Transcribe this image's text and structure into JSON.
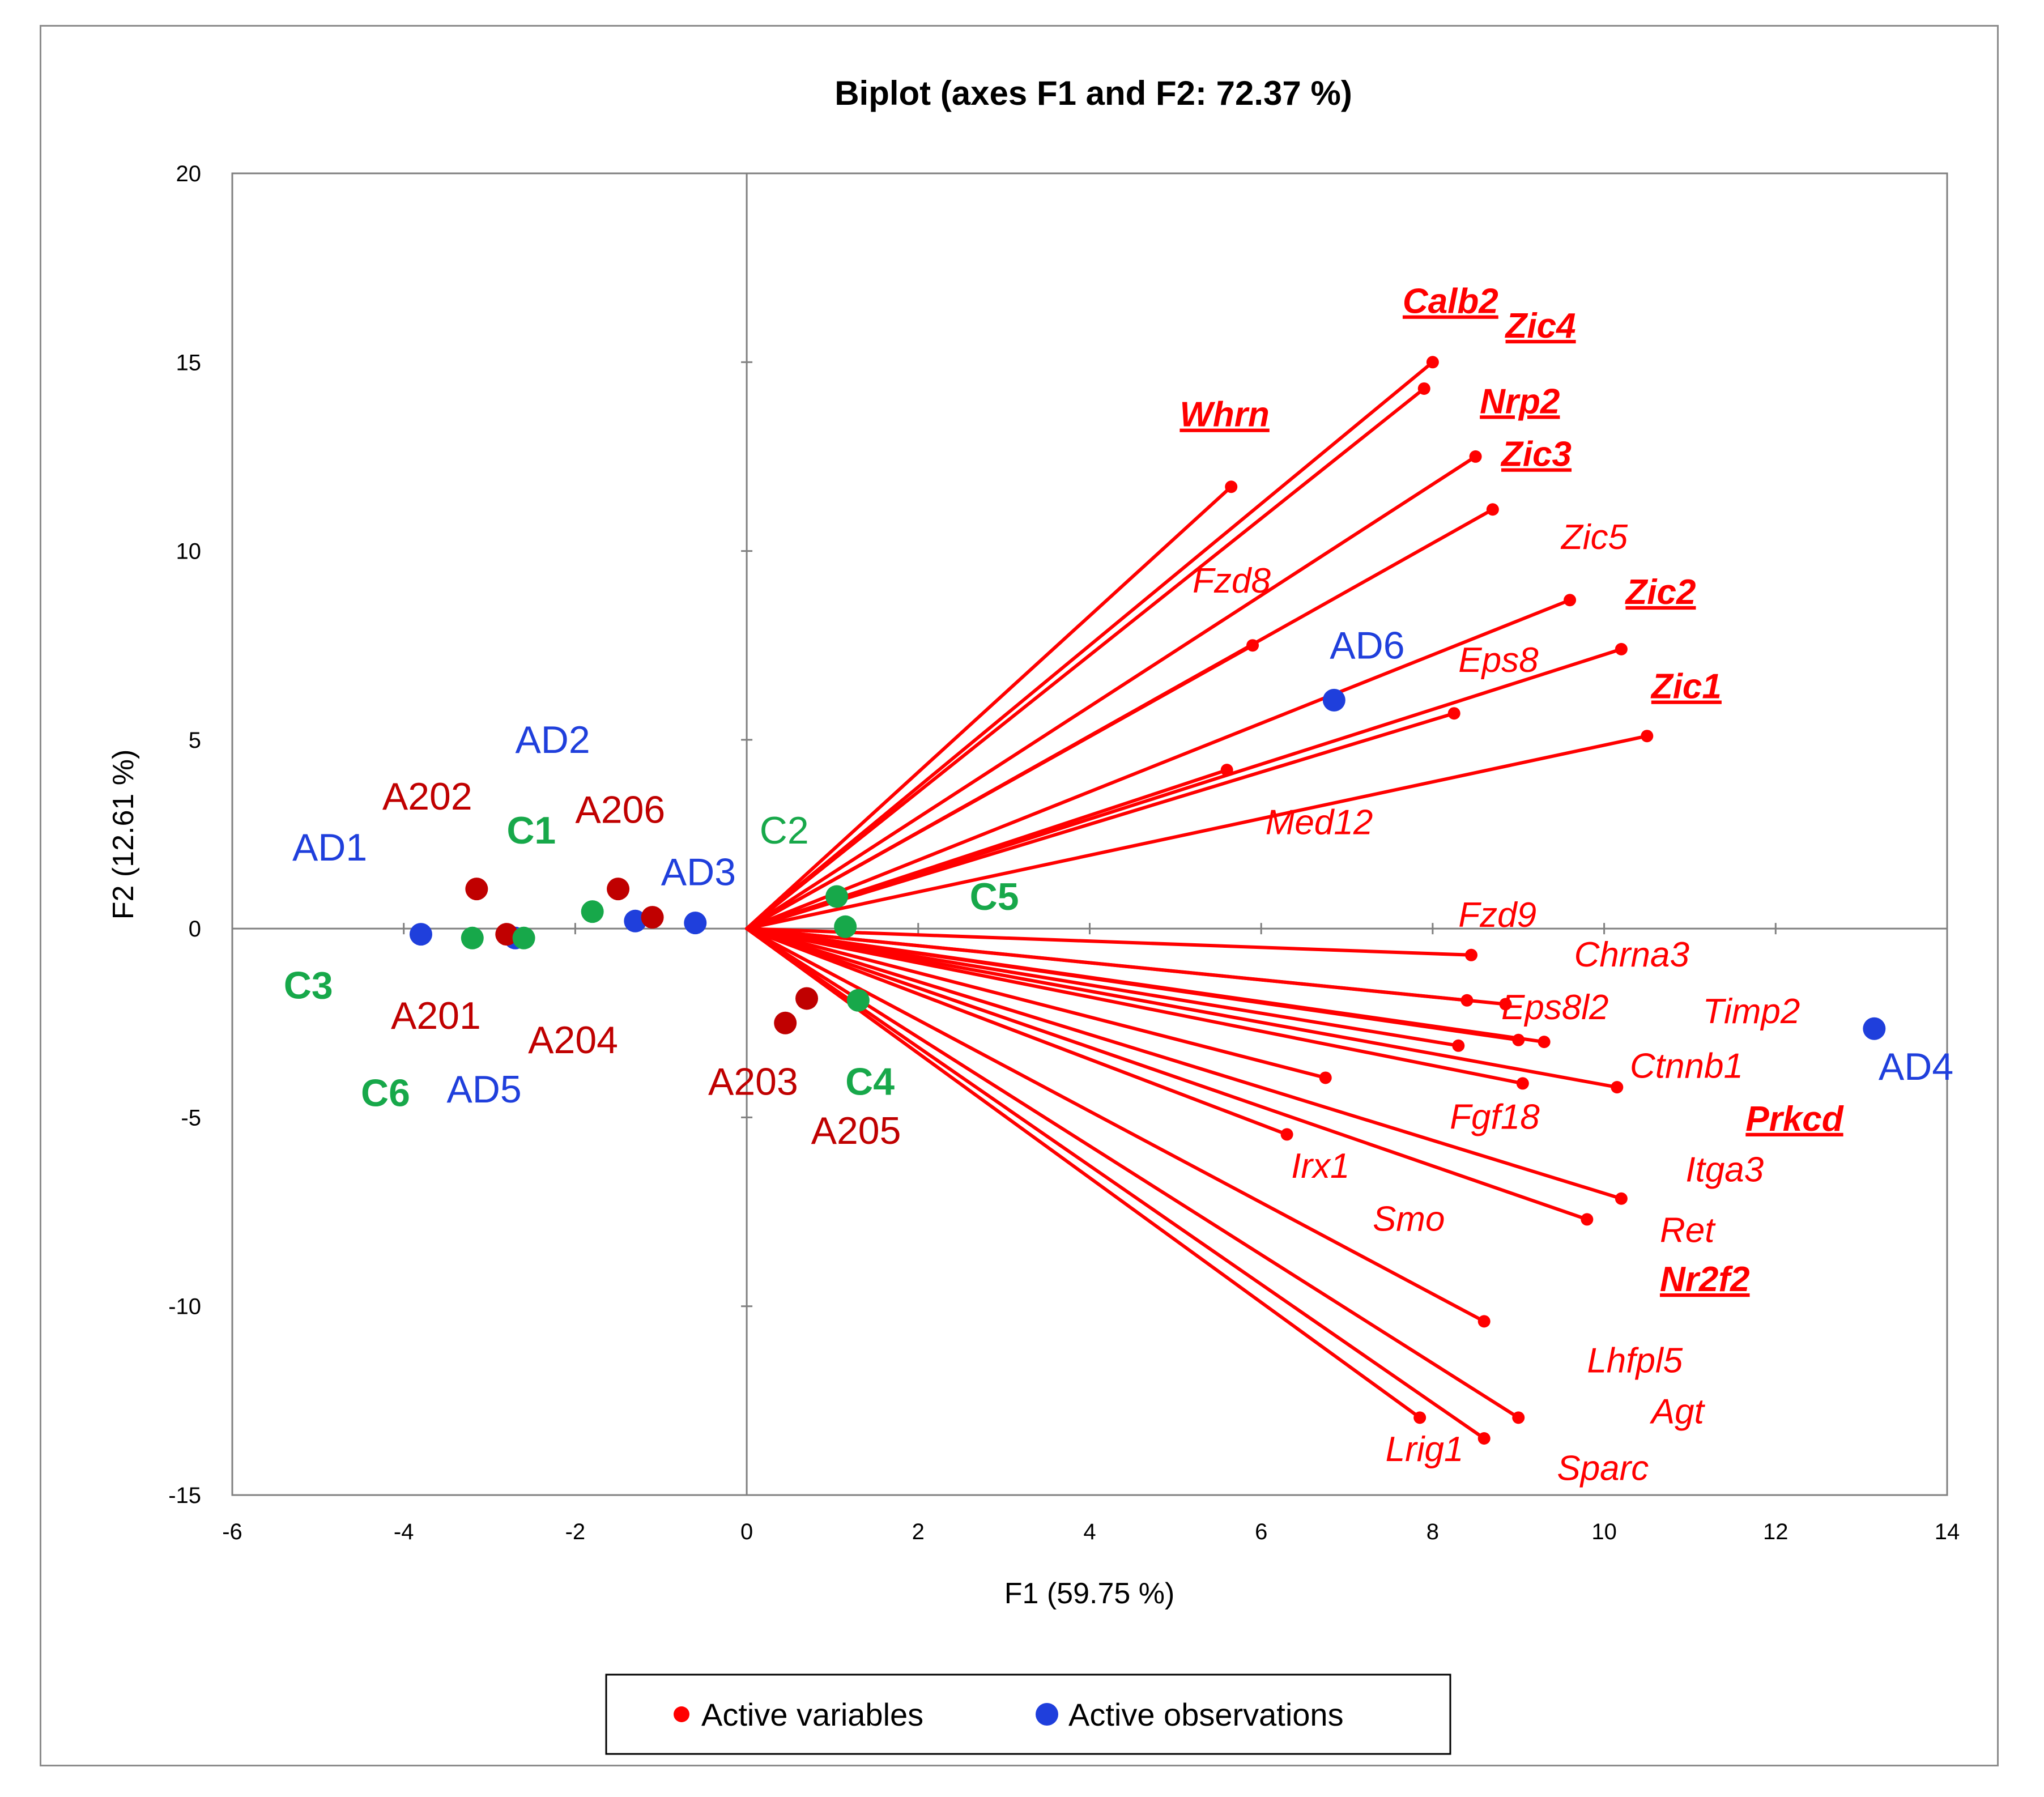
{
  "colors": {
    "variables": "#ff0000",
    "observations": "#1f3fdc",
    "group_A2": "#c00000",
    "group_AD": "#1f3fdc",
    "group_C": "#17a84a",
    "axis": "#808080",
    "text": "#000000"
  },
  "chart_data": {
    "type": "scatter",
    "title": "Biplot (axes F1 and F2: 72.37 %)",
    "xlabel": "F1 (59.75 %)",
    "ylabel": "F2 (12.61 %)",
    "xlim": [
      -6,
      14
    ],
    "ylim": [
      -15,
      20
    ],
    "xticks": [
      "-6",
      "-4",
      "-2",
      "0",
      "2",
      "4",
      "6",
      "8",
      "10",
      "12",
      "14"
    ],
    "yticks": [
      "20",
      "15",
      "10",
      "5",
      "0",
      "-5",
      "-10",
      "-15"
    ],
    "grid": false,
    "legend": {
      "position": "bottom",
      "items": [
        "Active variables",
        "Active observations"
      ]
    },
    "variables": [
      {
        "name": "Calb2",
        "x": 8.0,
        "y": 15.0,
        "style": "bold-underline"
      },
      {
        "name": "Zic4",
        "x": 7.9,
        "y": 14.3,
        "style": "bold-underline"
      },
      {
        "name": "Whrn",
        "x": 5.65,
        "y": 11.7,
        "style": "bold-underline"
      },
      {
        "name": "Nrp2",
        "x": 8.5,
        "y": 12.5,
        "style": "bold-underline"
      },
      {
        "name": "Zic3",
        "x": 8.7,
        "y": 11.1,
        "style": "bold-underline"
      },
      {
        "name": "Zic5",
        "x": 9.6,
        "y": 8.7,
        "style": "italic"
      },
      {
        "name": "Fzd8",
        "x": 5.9,
        "y": 7.5,
        "style": "italic"
      },
      {
        "name": "Zic2",
        "x": 10.2,
        "y": 7.4,
        "style": "bold-underline"
      },
      {
        "name": "Eps8",
        "x": 8.25,
        "y": 5.7,
        "style": "italic"
      },
      {
        "name": "Zic1",
        "x": 10.5,
        "y": 5.1,
        "style": "bold-underline"
      },
      {
        "name": "Med12",
        "x": 5.6,
        "y": 4.2,
        "style": "italic"
      },
      {
        "name": "Fzd9",
        "x": 8.45,
        "y": -0.7,
        "style": "italic"
      },
      {
        "name": "Chrna3",
        "x": 8.85,
        "y": -2.0,
        "style": "italic"
      },
      {
        "name": "Eps8l2",
        "x": 8.4,
        "y": -1.9,
        "style": "italic"
      },
      {
        "name": "Timp2",
        "x": 9.3,
        "y": -3.0,
        "style": "italic"
      },
      {
        "name": "Ctnnb1",
        "x": 10.15,
        "y": -4.2,
        "style": "italic"
      },
      {
        "name": "Prkcd",
        "x": 9.0,
        "y": -2.95,
        "style": "bold-underline"
      },
      {
        "name": "Fgf18",
        "x": 9.05,
        "y": -4.1,
        "style": "italic"
      },
      {
        "name": "Irx1",
        "x": 6.75,
        "y": -3.95,
        "style": "italic"
      },
      {
        "name": "Smo",
        "x": 6.3,
        "y": -5.45,
        "style": "italic"
      },
      {
        "name": "Itga3",
        "x": 10.2,
        "y": -7.15,
        "style": "italic"
      },
      {
        "name": "Ret",
        "x": 9.8,
        "y": -7.7,
        "style": "italic"
      },
      {
        "name": "Nr2f2",
        "x": 8.3,
        "y": -3.1,
        "style": "bold-underline"
      },
      {
        "name": "Lhfpl5",
        "x": 8.6,
        "y": -10.4,
        "style": "italic"
      },
      {
        "name": "Agt",
        "x": 9.0,
        "y": -12.95,
        "style": "italic"
      },
      {
        "name": "Lrig1",
        "x": 7.85,
        "y": -12.95,
        "style": "italic"
      },
      {
        "name": "Sparc",
        "x": 8.6,
        "y": -13.5,
        "style": "italic"
      }
    ],
    "variable_labels": [
      {
        "text": "Calb2",
        "x": 7.65,
        "y": 16.3,
        "bold": true,
        "underline": true
      },
      {
        "text": "Zic4",
        "x": 8.85,
        "y": 15.65,
        "bold": true,
        "underline": true
      },
      {
        "text": "Whrn",
        "x": 5.05,
        "y": 13.3,
        "bold": true,
        "underline": true
      },
      {
        "text": "Nrp2",
        "x": 8.55,
        "y": 13.65,
        "bold": true,
        "underline": true
      },
      {
        "text": "Zic3",
        "x": 8.8,
        "y": 12.25,
        "bold": true,
        "underline": true
      },
      {
        "text": "Zic5",
        "x": 9.5,
        "y": 10.05,
        "bold": false,
        "underline": false
      },
      {
        "text": "Fzd8",
        "x": 5.2,
        "y": 8.9,
        "bold": false,
        "underline": false
      },
      {
        "text": "Zic2",
        "x": 10.25,
        "y": 8.6,
        "bold": true,
        "underline": true
      },
      {
        "text": "Eps8",
        "x": 8.3,
        "y": 6.8,
        "bold": false,
        "underline": false
      },
      {
        "text": "Zic1",
        "x": 10.55,
        "y": 6.1,
        "bold": true,
        "underline": true
      },
      {
        "text": "Med12",
        "x": 6.05,
        "y": 2.5,
        "bold": false,
        "underline": false
      },
      {
        "text": "Fzd9",
        "x": 8.3,
        "y": 0.05,
        "bold": false,
        "underline": false
      },
      {
        "text": "Chrna3",
        "x": 9.65,
        "y": -1.0,
        "bold": false,
        "underline": false
      },
      {
        "text": "Eps8l2",
        "x": 8.8,
        "y": -2.4,
        "bold": false,
        "underline": false
      },
      {
        "text": "Timp2",
        "x": 11.15,
        "y": -2.5,
        "bold": false,
        "underline": false
      },
      {
        "text": "Ctnnb1",
        "x": 10.3,
        "y": -3.95,
        "bold": false,
        "underline": false
      },
      {
        "text": "Prkcd",
        "x": 11.65,
        "y": -5.35,
        "bold": true,
        "underline": true
      },
      {
        "text": "Fgf18",
        "x": 8.2,
        "y": -5.3,
        "bold": false,
        "underline": false
      },
      {
        "text": "Irx1",
        "x": 6.35,
        "y": -6.6,
        "bold": false,
        "underline": false
      },
      {
        "text": "Smo",
        "x": 7.3,
        "y": -8.0,
        "bold": false,
        "underline": false
      },
      {
        "text": "Itga3",
        "x": 10.95,
        "y": -6.7,
        "bold": false,
        "underline": false
      },
      {
        "text": "Ret",
        "x": 10.65,
        "y": -8.3,
        "bold": false,
        "underline": false
      },
      {
        "text": "Nr2f2",
        "x": 10.65,
        "y": -9.6,
        "bold": true,
        "underline": true
      },
      {
        "text": "Lhfpl5",
        "x": 9.8,
        "y": -11.75,
        "bold": false,
        "underline": false
      },
      {
        "text": "Agt",
        "x": 10.55,
        "y": -13.1,
        "bold": false,
        "underline": false
      },
      {
        "text": "Lrig1",
        "x": 7.45,
        "y": -14.1,
        "bold": false,
        "underline": false
      },
      {
        "text": "Sparc",
        "x": 9.45,
        "y": -14.6,
        "bold": false,
        "underline": false
      }
    ],
    "observations": [
      {
        "name": "AD1",
        "x": -3.8,
        "y": -0.15,
        "group": "AD"
      },
      {
        "name": "AD2",
        "x": -2.7,
        "y": -0.25,
        "group": "AD"
      },
      {
        "name": "AD3",
        "x": -1.3,
        "y": 0.2,
        "group": "AD"
      },
      {
        "name": "AD5",
        "x": -0.6,
        "y": 0.15,
        "group": "AD"
      },
      {
        "name": "AD6",
        "x": 6.85,
        "y": 6.05,
        "group": "AD"
      },
      {
        "name": "AD4",
        "x": 13.15,
        "y": -2.65,
        "group": "AD"
      },
      {
        "name": "A202",
        "x": -3.15,
        "y": 1.05,
        "group": "A2"
      },
      {
        "name": "A201",
        "x": -2.8,
        "y": -0.15,
        "group": "A2"
      },
      {
        "name": "A206",
        "x": -1.5,
        "y": 1.05,
        "group": "A2"
      },
      {
        "name": "A204",
        "x": -1.1,
        "y": 0.3,
        "group": "A2"
      },
      {
        "name": "A203",
        "x": 0.45,
        "y": -2.5,
        "group": "A2"
      },
      {
        "name": "A205",
        "x": 0.7,
        "y": -1.85,
        "group": "A2"
      },
      {
        "name": "C3",
        "x": -3.2,
        "y": -0.25,
        "group": "C"
      },
      {
        "name": "C6",
        "x": -2.6,
        "y": -0.25,
        "group": "C"
      },
      {
        "name": "C1",
        "x": -1.8,
        "y": 0.45,
        "group": "C"
      },
      {
        "name": "C2",
        "x": 1.05,
        "y": 0.85,
        "group": "C"
      },
      {
        "name": "C5",
        "x": 1.15,
        "y": 0.05,
        "group": "C"
      },
      {
        "name": "C4",
        "x": 1.3,
        "y": -1.9,
        "group": "C"
      }
    ],
    "observation_labels": [
      {
        "text": "AD1",
        "x": -5.3,
        "y": 1.8,
        "group": "AD",
        "bold": false
      },
      {
        "text": "AD2",
        "x": -2.7,
        "y": 4.65,
        "group": "AD",
        "bold": false
      },
      {
        "text": "AD3",
        "x": -1.0,
        "y": 1.15,
        "group": "AD",
        "bold": false
      },
      {
        "text": "AD5",
        "x": -3.5,
        "y": -4.6,
        "group": "AD",
        "bold": false
      },
      {
        "text": "AD6",
        "x": 6.8,
        "y": 7.15,
        "group": "AD",
        "bold": false
      },
      {
        "text": "AD4",
        "x": 13.2,
        "y": -4.0,
        "group": "AD",
        "bold": false
      },
      {
        "text": "A202",
        "x": -4.25,
        "y": 3.15,
        "group": "A2",
        "bold": false
      },
      {
        "text": "A201",
        "x": -4.15,
        "y": -2.65,
        "group": "A2",
        "bold": false
      },
      {
        "text": "A206",
        "x": -2.0,
        "y": 2.8,
        "group": "A2",
        "bold": false
      },
      {
        "text": "A204",
        "x": -2.55,
        "y": -3.3,
        "group": "A2",
        "bold": false
      },
      {
        "text": "A203",
        "x": -0.45,
        "y": -4.4,
        "group": "A2",
        "bold": false
      },
      {
        "text": "A205",
        "x": 0.75,
        "y": -5.7,
        "group": "A2",
        "bold": false
      },
      {
        "text": "C3",
        "x": -5.4,
        "y": -1.85,
        "group": "C",
        "bold": true
      },
      {
        "text": "C6",
        "x": -4.5,
        "y": -4.7,
        "group": "C",
        "bold": true
      },
      {
        "text": "C1",
        "x": -2.8,
        "y": 2.25,
        "group": "C",
        "bold": true
      },
      {
        "text": "C2",
        "x": 0.15,
        "y": 2.25,
        "group": "C",
        "bold": false
      },
      {
        "text": "C5",
        "x": 2.6,
        "y": 0.5,
        "group": "C",
        "bold": true
      },
      {
        "text": "C4",
        "x": 1.15,
        "y": -4.4,
        "group": "C",
        "bold": true
      }
    ]
  }
}
